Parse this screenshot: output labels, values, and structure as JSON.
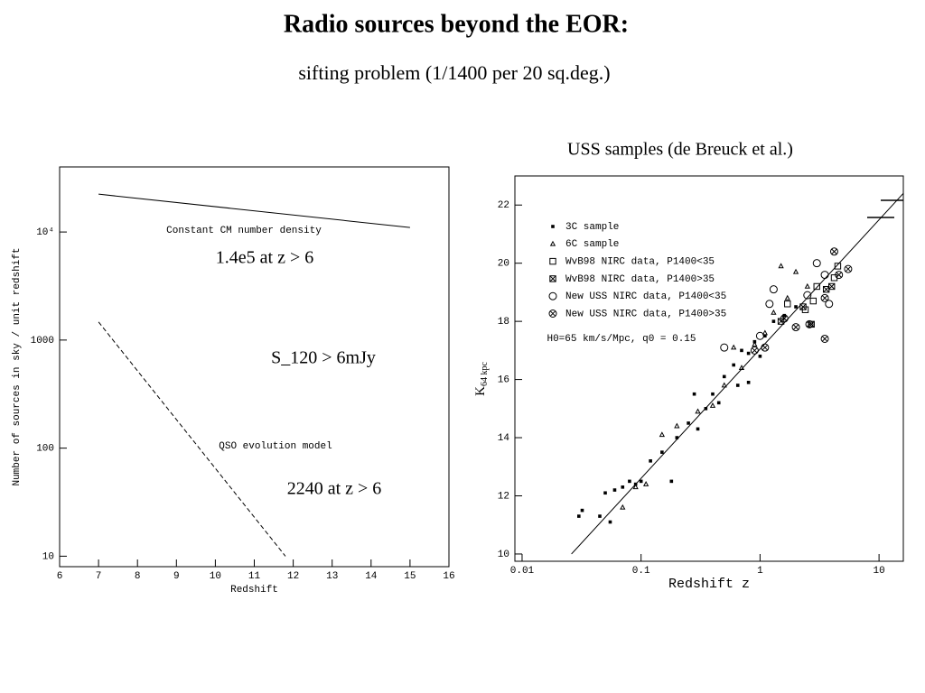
{
  "title": "Radio sources beyond the EOR:",
  "subtitle": "sifting problem (1/1400 per 20 sq.deg.)",
  "chart_data": [
    {
      "type": "line",
      "x_label": "Redshift",
      "y_label": "Number of sources in sky / unit redshift",
      "xscale": "linear",
      "yscale": "log",
      "xlim": [
        6,
        16
      ],
      "xticks": [
        6,
        7,
        8,
        9,
        10,
        11,
        12,
        13,
        14,
        15,
        16
      ],
      "ylim": [
        8,
        40000
      ],
      "yticks": [
        10,
        100,
        1000,
        {
          "value": 10000,
          "label": "10⁴"
        }
      ],
      "series": [
        {
          "name": "Constant CM number density",
          "color": "#000000",
          "dash": false,
          "x": [
            7,
            15
          ],
          "values": [
            22400,
            11000
          ]
        },
        {
          "name": "QSO evolution model",
          "color": "#000000",
          "dash": true,
          "x": [
            7,
            11.8
          ],
          "values": [
            1470,
            10
          ]
        }
      ],
      "annotations": [
        "1.4e5 at z > 6",
        "S_120 > 6mJy",
        "2240  at z > 6"
      ]
    },
    {
      "type": "scatter",
      "title": "USS samples  (de Breuck et al.)",
      "x_label": "Redshift  z",
      "y_label": "K",
      "y_label_sub": "64 kpc",
      "xscale": "log",
      "yscale": "linear",
      "xlim": [
        0.0087,
        16
      ],
      "xticks": [
        0.01,
        0.1,
        1,
        10
      ],
      "ylim": [
        9.75,
        23
      ],
      "yticks": [
        10,
        12,
        14,
        16,
        18,
        20,
        22
      ],
      "legend": "upper left",
      "annotations": [
        "H0=65 km/s/Mpc, q0 = 0.15"
      ],
      "fit": {
        "x": [
          0.026,
          16
        ],
        "y": [
          10,
          22.4
        ]
      },
      "series": [
        {
          "name": "3C sample",
          "color": "#000000",
          "marker": "filled-square",
          "x": [
            0.03,
            0.032,
            0.045,
            0.05,
            0.055,
            0.06,
            0.07,
            0.08,
            0.09,
            0.1,
            0.12,
            0.15,
            0.18,
            0.2,
            0.25,
            0.3,
            0.35,
            0.4,
            0.45,
            0.5,
            0.6,
            0.7,
            0.8,
            0.9,
            1.0,
            1.1,
            1.3,
            1.6,
            2.0,
            0.65,
            0.28,
            0.8
          ],
          "values": [
            11.3,
            11.5,
            11.3,
            12.1,
            11.1,
            12.2,
            12.3,
            12.5,
            12.4,
            12.5,
            13.2,
            13.5,
            12.5,
            14,
            14.5,
            14.3,
            15,
            15.5,
            15.2,
            16.1,
            16.5,
            17,
            16.9,
            17.3,
            16.8,
            17.5,
            18,
            18.2,
            18.5,
            15.8,
            15.5,
            15.9
          ]
        },
        {
          "name": "6C sample",
          "color": "#000000",
          "marker": "triangle",
          "x": [
            0.07,
            0.09,
            0.11,
            0.15,
            0.2,
            0.3,
            0.4,
            0.5,
            0.7,
            0.9,
            1.1,
            1.3,
            1.7,
            2.0,
            2.5,
            0.6,
            1.5
          ],
          "values": [
            11.6,
            12.3,
            12.4,
            14.1,
            14.4,
            14.9,
            15.1,
            15.8,
            16.4,
            17.2,
            17.6,
            18.3,
            18.8,
            19.7,
            19.2,
            17.1,
            19.9
          ]
        },
        {
          "name": "WvB98 NIRC data, P1400<35",
          "color": "#000000",
          "marker": "square",
          "x": [
            1.7,
            2.4,
            2.8,
            3.0,
            4.2,
            4.5
          ],
          "values": [
            18.6,
            18.4,
            18.7,
            19.2,
            19.5,
            19.9
          ]
        },
        {
          "name": "WvB98 NIRC data, P1400>35",
          "color": "#000000",
          "marker": "square-x",
          "x": [
            1.5,
            2.3,
            3.6,
            4.0,
            2.7
          ],
          "values": [
            18.0,
            18.5,
            19.1,
            19.2,
            17.9
          ]
        },
        {
          "name": "New USS NIRC data, P1400<35",
          "color": "#000000",
          "marker": "circle",
          "x": [
            0.5,
            1.2,
            1.3,
            2.5,
            3,
            3.8,
            1.0,
            3.5
          ],
          "values": [
            17.1,
            18.6,
            19.1,
            18.9,
            20,
            18.6,
            17.5,
            19.6
          ]
        },
        {
          "name": "New USS NIRC data, P1400>35",
          "color": "#000000",
          "marker": "circle-x",
          "x": [
            0.9,
            1.1,
            1.6,
            2.0,
            2.6,
            3.5,
            3.5,
            4.2,
            4.6,
            5.5
          ],
          "values": [
            17.0,
            17.1,
            18.1,
            17.8,
            17.9,
            17.4,
            18.8,
            20.4,
            19.6,
            19.8
          ]
        }
      ]
    }
  ]
}
